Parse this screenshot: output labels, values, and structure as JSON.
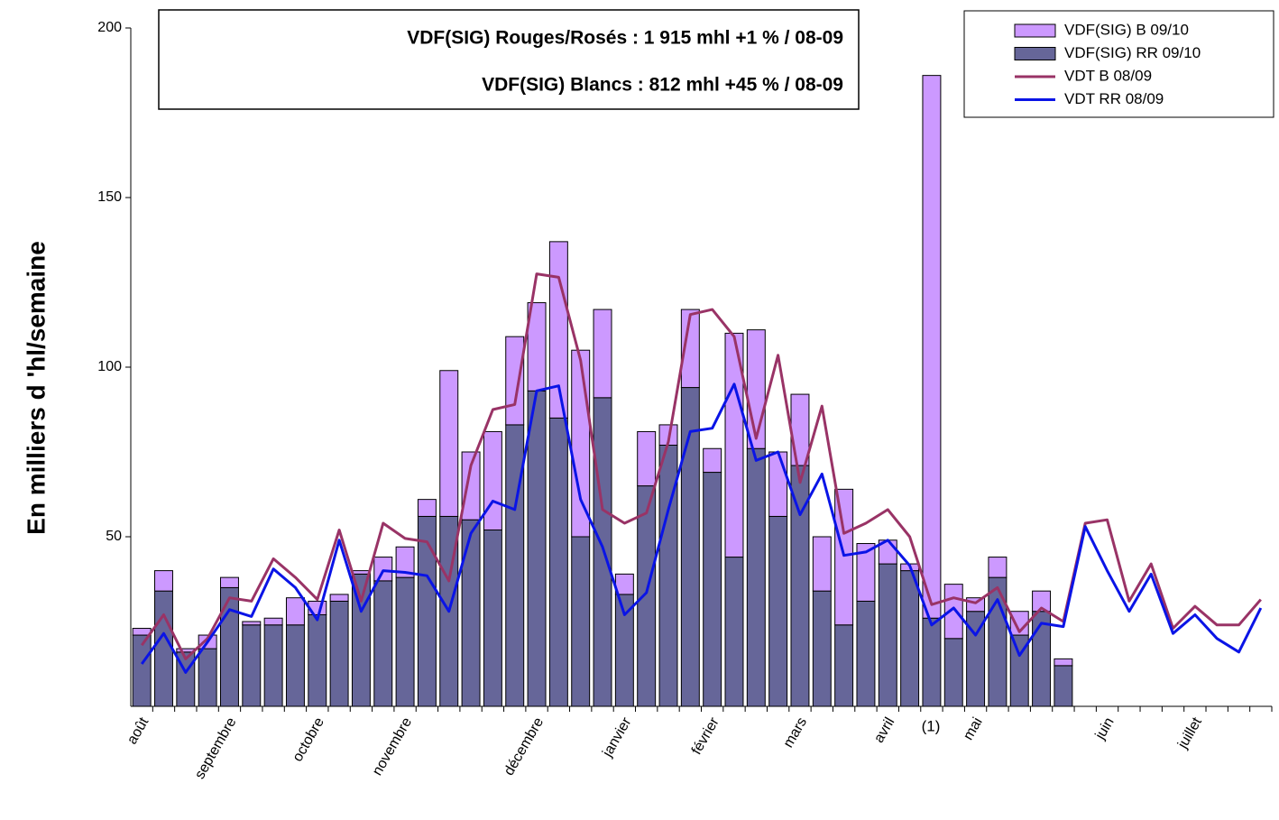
{
  "chart_data": {
    "type": "bar",
    "ylabel": "En milliers d 'hl/semaine",
    "annotations": [
      "VDF(SIG) Rouges/Rosés : 1 915 mhl +1 % / 08-09",
      "VDF(SIG) Blancs : 812 mhl +45 % / 08-09",
      "(1)"
    ],
    "categories": [
      "août",
      null,
      null,
      null,
      "septembre",
      null,
      null,
      null,
      "octobre",
      null,
      null,
      null,
      "novembre",
      null,
      null,
      null,
      null,
      null,
      "décembre",
      null,
      null,
      null,
      "janvier",
      null,
      null,
      null,
      "février",
      null,
      null,
      null,
      "mars",
      null,
      null,
      null,
      "avril",
      null,
      null,
      null,
      "mai",
      null,
      null,
      null,
      null,
      null,
      "juin",
      null,
      null,
      null,
      "juillet",
      null,
      null,
      null
    ],
    "series": [
      {
        "name": "VDF(SIG) B 09/10",
        "type": "bar",
        "color": "#cc99ff",
        "values": [
          2,
          6,
          1,
          4,
          3,
          1,
          2,
          8,
          4,
          2,
          1,
          7,
          9,
          5,
          43,
          20,
          29,
          26,
          26,
          52,
          55,
          26,
          6,
          16,
          6,
          23,
          7,
          66,
          35,
          19,
          21,
          16,
          40,
          17,
          7,
          2,
          160,
          16,
          4,
          6,
          7,
          6,
          2,
          null,
          null,
          null,
          null,
          null,
          null,
          null,
          null,
          null
        ]
      },
      {
        "name": "VDF(SIG) RR 09/10",
        "type": "bar",
        "color": "#666699",
        "values": [
          21,
          34,
          16,
          17,
          35,
          24,
          24,
          24,
          27,
          31,
          39,
          37,
          38,
          56,
          56,
          55,
          52,
          83,
          93,
          85,
          50,
          91,
          33,
          65,
          77,
          94,
          69,
          44,
          76,
          56,
          71,
          34,
          24,
          31,
          42,
          40,
          26,
          20,
          28,
          38,
          21,
          28,
          12,
          null,
          null,
          null,
          null,
          null,
          null,
          null,
          null,
          null
        ]
      },
      {
        "name": "VDT B 08/09",
        "type": "line",
        "color": "#993366",
        "values": [
          18,
          27,
          14,
          20,
          32,
          31,
          43.5,
          38,
          31.5,
          52,
          31,
          54,
          49.5,
          48.5,
          37,
          71,
          87.5,
          89,
          127.5,
          126.5,
          102,
          58,
          54,
          57,
          78,
          115.5,
          117,
          109,
          79,
          103.5,
          66,
          88.5,
          51,
          54,
          58,
          50,
          30,
          32,
          30.5,
          35,
          22,
          29,
          25,
          54,
          55,
          31,
          42,
          23,
          29.5,
          24,
          24,
          31.5
        ]
      },
      {
        "name": "VDT RR 08/09",
        "type": "line",
        "color": "#0a14e6",
        "values": [
          12.5,
          21.5,
          10,
          19,
          28.5,
          26.5,
          40.5,
          35,
          25.5,
          49,
          28,
          40,
          39.5,
          38.5,
          28,
          51,
          60.5,
          58,
          93,
          94.5,
          61,
          47,
          27,
          33.5,
          58,
          81,
          82,
          95,
          72.5,
          75,
          56.5,
          68.5,
          44.5,
          45.5,
          49,
          41.5,
          24,
          29,
          21,
          31.5,
          15,
          24.5,
          23.5,
          53,
          40,
          28,
          39,
          21.5,
          27,
          20,
          16,
          29
        ]
      }
    ],
    "ylim": [
      0,
      200
    ],
    "yticks": [
      50,
      100,
      150,
      200
    ],
    "grid": false,
    "stacked": true,
    "legend": "top-right"
  }
}
